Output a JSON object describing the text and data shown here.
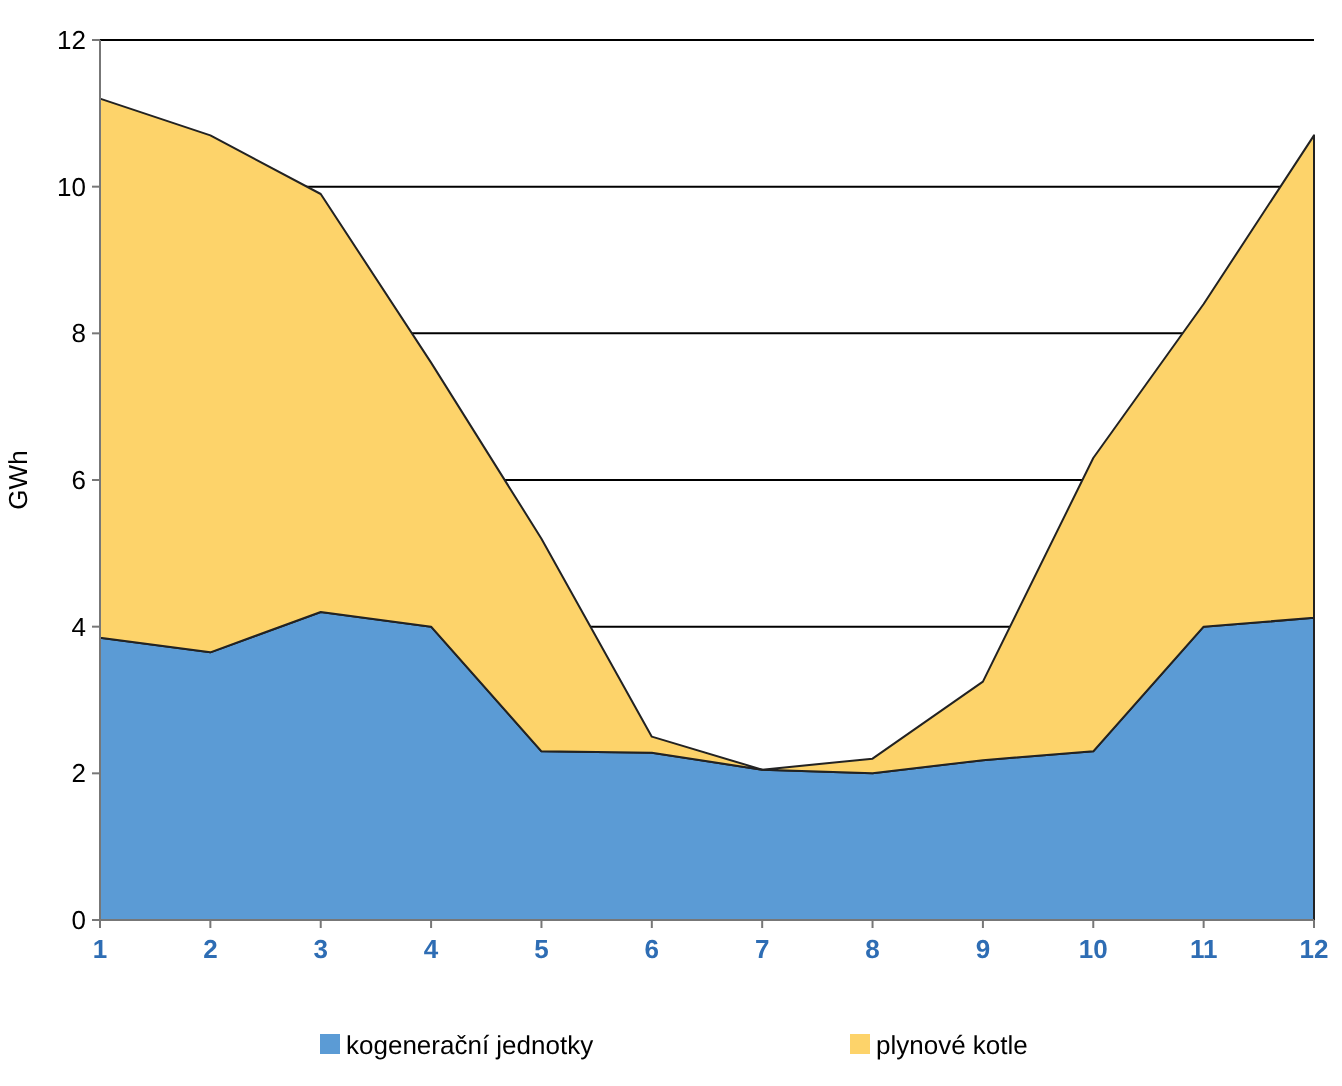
{
  "chart_data": {
    "type": "area",
    "stacked": true,
    "ylabel": "GWh",
    "categories": [
      "1",
      "2",
      "3",
      "4",
      "5",
      "6",
      "7",
      "8",
      "9",
      "10",
      "11",
      "12"
    ],
    "series": [
      {
        "name": "kogenerační jednotky",
        "color": "#5b9bd5",
        "values": [
          3.85,
          3.65,
          4.2,
          4.0,
          2.3,
          2.28,
          2.05,
          2.0,
          2.18,
          2.3,
          4.0,
          4.12
        ]
      },
      {
        "name": "plynové kotle",
        "color": "#fdd36a",
        "values": [
          7.35,
          7.05,
          5.7,
          3.6,
          2.9,
          0.22,
          0,
          0.2,
          1.07,
          4.0,
          4.4,
          6.58
        ]
      }
    ],
    "ylim": [
      0,
      12
    ],
    "yticks": [
      0,
      2,
      4,
      6,
      8,
      10,
      12
    ],
    "grid": "y",
    "legend": "bottom"
  }
}
